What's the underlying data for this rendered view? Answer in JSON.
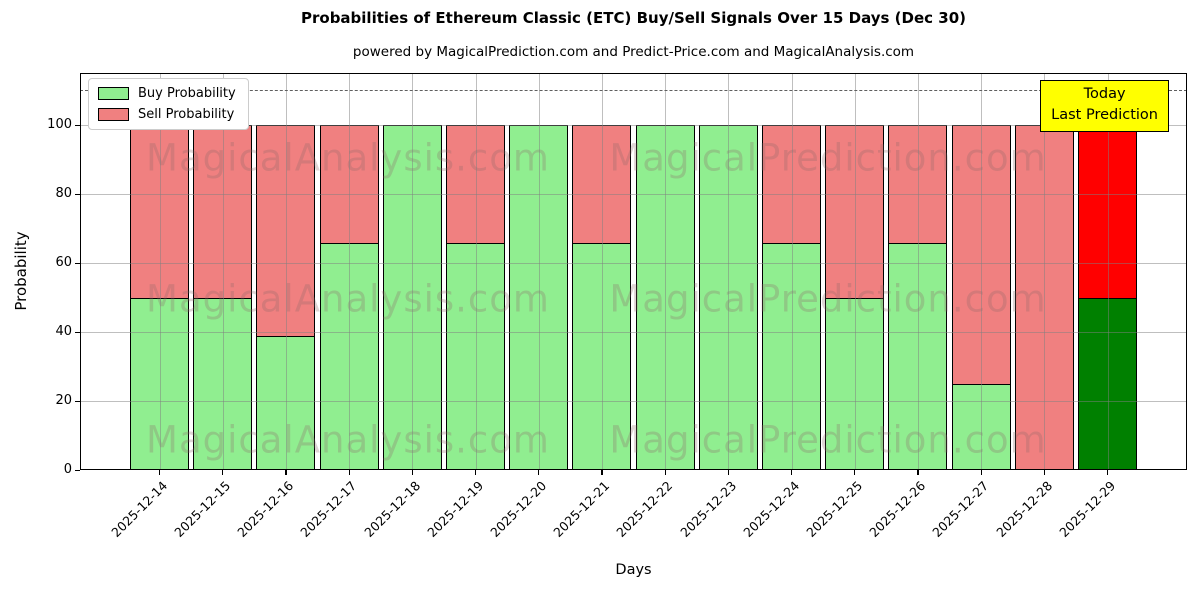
{
  "page": {
    "title": "Probabilities of Ethereum Classic (ETC) Buy/Sell Signals Over 15 Days (Dec 30)",
    "subtitle": "powered by MagicalPrediction.com and Predict-Price.com and MagicalAnalysis.com"
  },
  "legend": {
    "items": [
      {
        "label": "Buy Probability",
        "color": "#90EE90"
      },
      {
        "label": "Sell Probability",
        "color": "#F08080"
      }
    ]
  },
  "annotation": {
    "line1": "Today",
    "line2": "Last Prediction",
    "bg_color": "#FFFF00"
  },
  "watermarks": {
    "left_text": "MagicalAnalysis.com",
    "right_text": "MagicalPrediction.com"
  },
  "chart_data": {
    "type": "bar",
    "stacked": true,
    "title": "Probabilities of Ethereum Classic (ETC) Buy/Sell Signals Over 15 Days (Dec 30)",
    "xlabel": "Days",
    "ylabel": "Probability",
    "categories": [
      "2025-12-14",
      "2025-12-15",
      "2025-12-16",
      "2025-12-17",
      "2025-12-18",
      "2025-12-19",
      "2025-12-20",
      "2025-12-21",
      "2025-12-22",
      "2025-12-23",
      "2025-12-24",
      "2025-12-25",
      "2025-12-26",
      "2025-12-27",
      "2025-12-28",
      "2025-12-29"
    ],
    "series": [
      {
        "name": "Buy Probability",
        "color": "#90EE90",
        "values": [
          50,
          50,
          39,
          66,
          100,
          66,
          100,
          66,
          100,
          100,
          66,
          50,
          66,
          25,
          0,
          50
        ]
      },
      {
        "name": "Sell Probability",
        "color": "#F08080",
        "values": [
          50,
          50,
          61,
          34,
          0,
          34,
          0,
          34,
          0,
          0,
          34,
          50,
          34,
          75,
          100,
          50
        ]
      }
    ],
    "highlight_last_bar": {
      "buy_color": "#008000",
      "sell_color": "#FF0000"
    },
    "yticks": [
      0,
      20,
      40,
      60,
      80,
      100
    ],
    "ylim": [
      0,
      115
    ],
    "dashed_hline": 110,
    "grid": true,
    "legend_position": "upper left",
    "bar_edge_color": "#000000"
  }
}
